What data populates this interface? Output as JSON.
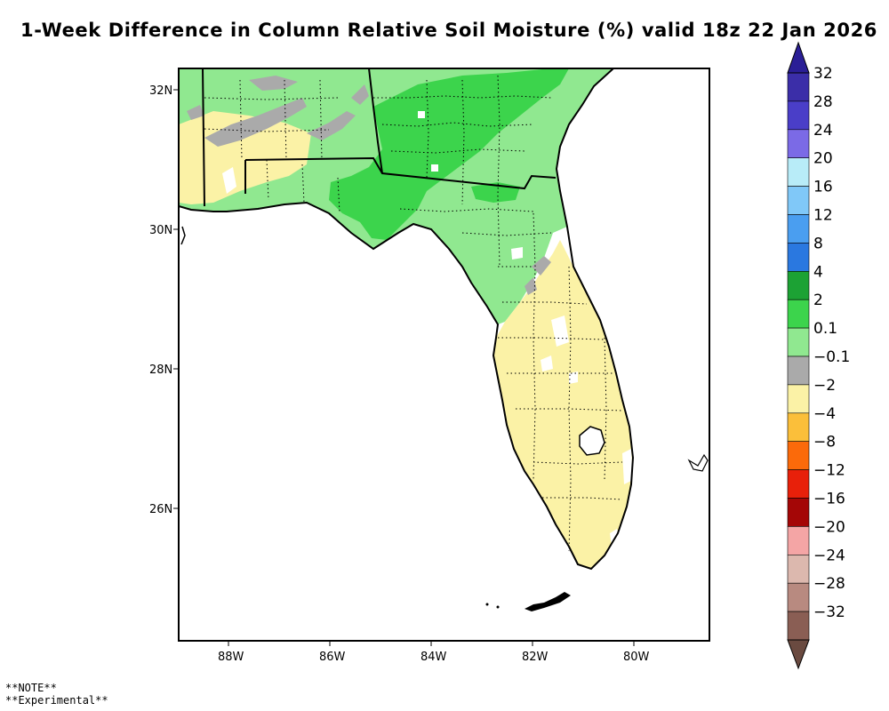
{
  "title": "1-Week Difference in Column Relative Soil Moisture (%) valid 18z 22 Jan 2026",
  "axes": {
    "lat_labels": [
      "32N",
      "30N",
      "28N",
      "26N"
    ],
    "lon_labels": [
      "88W",
      "86W",
      "84W",
      "82W",
      "80W"
    ]
  },
  "colorbar": {
    "labels": [
      "32",
      "28",
      "24",
      "20",
      "16",
      "12",
      "8",
      "4",
      "2",
      "0.1",
      "-0.1",
      "-2",
      "-4",
      "-8",
      "-12",
      "-16",
      "-20",
      "-24",
      "-28",
      "-32"
    ],
    "colors": [
      "#3b2ea8",
      "#4a3ec8",
      "#7b6ae6",
      "#b8ecf8",
      "#80c8f8",
      "#4a9ef0",
      "#2a78e0",
      "#1ca234",
      "#3cd44c",
      "#90e890",
      "#aaaaaa",
      "#fbf2a6",
      "#fbbf3a",
      "#fb6a0a",
      "#e8200a",
      "#a40606",
      "#f4a5a5",
      "#dcb8ae",
      "#b88a80",
      "#8a5e54"
    ],
    "top_arrow_color": "#2a1e96",
    "bottom_arrow_color": "#6a4a40"
  },
  "map_colors": {
    "positive_light": "#90e890",
    "positive_mid": "#3cd44c",
    "near_zero": "#aaaaaa",
    "negative_light": "#fbf2a6",
    "no_change": "#ffffff"
  },
  "notes": [
    "**NOTE**",
    "**Experimental**"
  ]
}
